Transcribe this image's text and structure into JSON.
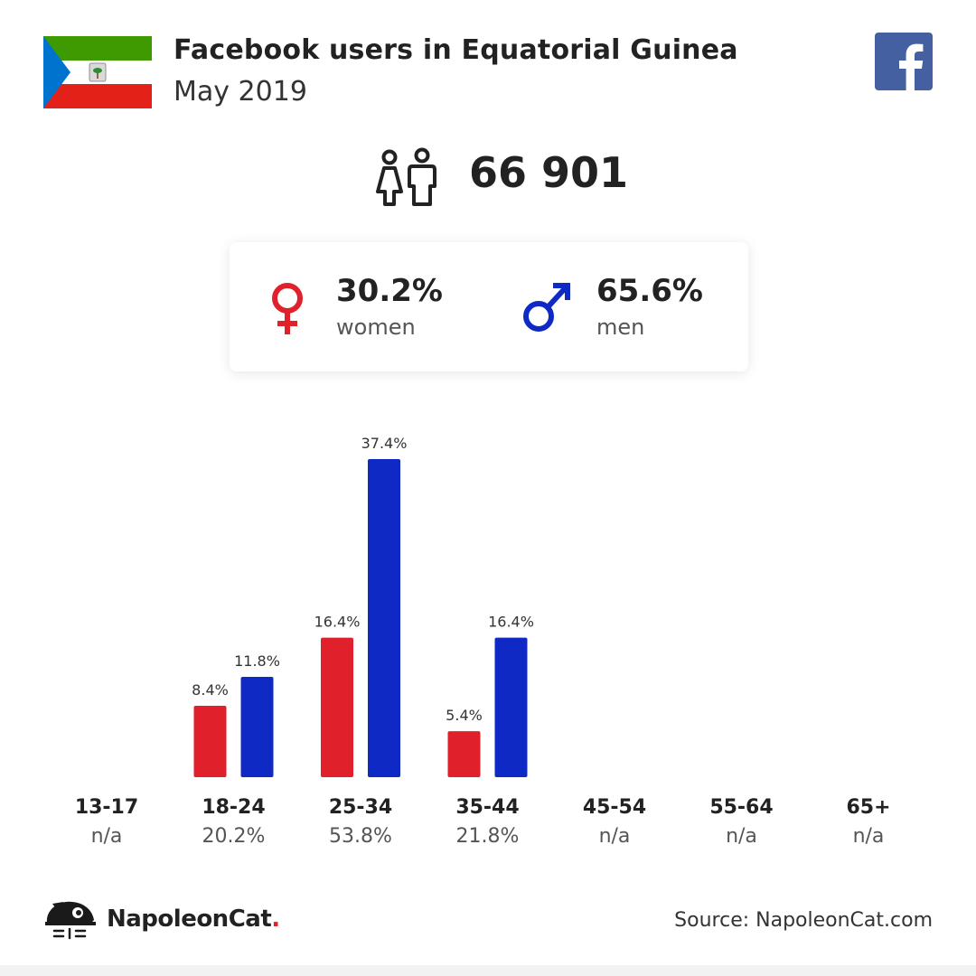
{
  "header": {
    "title": "Facebook users in Equatorial Guinea",
    "subtitle": "May 2019"
  },
  "summary": {
    "total_users": "66 901",
    "women": {
      "percent": "30.2%",
      "label": "women"
    },
    "men": {
      "percent": "65.6%",
      "label": "men"
    }
  },
  "colors": {
    "women": "#e0202a",
    "men": "#0f2ac4",
    "facebook": "#4460a0",
    "flag_green": "#3e9a00",
    "flag_red": "#e32118",
    "flag_blue": "#0073ce"
  },
  "chart_data": {
    "type": "bar",
    "categories": [
      "13-17",
      "18-24",
      "25-34",
      "35-44",
      "45-54",
      "55-64",
      "65+"
    ],
    "category_totals": [
      "n/a",
      "20.2%",
      "53.8%",
      "21.8%",
      "n/a",
      "n/a",
      "n/a"
    ],
    "series": [
      {
        "name": "women",
        "values": [
          null,
          8.4,
          16.4,
          5.4,
          null,
          null,
          null
        ],
        "labels": [
          "",
          "8.4%",
          "16.4%",
          "5.4%",
          "",
          "",
          ""
        ]
      },
      {
        "name": "men",
        "values": [
          null,
          11.8,
          37.4,
          16.4,
          null,
          null,
          null
        ],
        "labels": [
          "",
          "11.8%",
          "37.4%",
          "16.4%",
          "",
          "",
          ""
        ]
      }
    ],
    "title": "",
    "xlabel": "",
    "ylabel": "",
    "ylim": [
      0,
      37.4
    ]
  },
  "footer": {
    "brand_name": "NapoleonCat",
    "brand_dot": ".",
    "source": "Source: NapoleonCat.com"
  }
}
